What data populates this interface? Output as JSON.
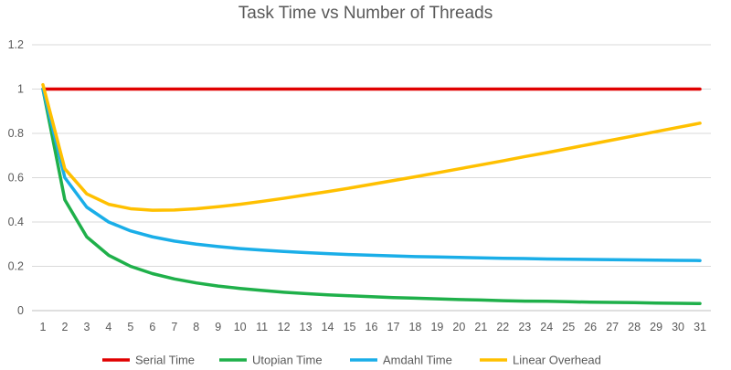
{
  "chart_data": {
    "type": "line",
    "title": "Task Time vs Number of Threads",
    "xlabel": "",
    "ylabel": "",
    "ylim": [
      0,
      1.2
    ],
    "yticks": [
      "0",
      "0.2",
      "0.4",
      "0.6",
      "0.8",
      "1",
      "1.2"
    ],
    "x": [
      1,
      2,
      3,
      4,
      5,
      6,
      7,
      8,
      9,
      10,
      11,
      12,
      13,
      14,
      15,
      16,
      17,
      18,
      19,
      20,
      21,
      22,
      23,
      24,
      25,
      26,
      27,
      28,
      29,
      30,
      31
    ],
    "grid": true,
    "legend_position": "bottom",
    "series": [
      {
        "name": "Serial Time",
        "color": "#e00000",
        "values": [
          1,
          1,
          1,
          1,
          1,
          1,
          1,
          1,
          1,
          1,
          1,
          1,
          1,
          1,
          1,
          1,
          1,
          1,
          1,
          1,
          1,
          1,
          1,
          1,
          1,
          1,
          1,
          1,
          1,
          1,
          1
        ]
      },
      {
        "name": "Utopian Time",
        "color": "#1fb04a",
        "values": [
          1,
          0.5,
          0.333,
          0.25,
          0.2,
          0.167,
          0.143,
          0.125,
          0.111,
          0.1,
          0.091,
          0.083,
          0.077,
          0.071,
          0.067,
          0.063,
          0.059,
          0.056,
          0.053,
          0.05,
          0.048,
          0.045,
          0.043,
          0.042,
          0.04,
          0.038,
          0.037,
          0.036,
          0.034,
          0.033,
          0.032
        ]
      },
      {
        "name": "Amdahl Time",
        "color": "#1aaee8",
        "values": [
          1,
          0.6,
          0.467,
          0.4,
          0.36,
          0.333,
          0.314,
          0.3,
          0.289,
          0.28,
          0.273,
          0.267,
          0.262,
          0.257,
          0.253,
          0.25,
          0.247,
          0.244,
          0.242,
          0.24,
          0.238,
          0.236,
          0.235,
          0.233,
          0.232,
          0.231,
          0.23,
          0.229,
          0.228,
          0.227,
          0.226
        ]
      },
      {
        "name": "Linear Overhead",
        "color": "#ffc000",
        "values": [
          1.02,
          0.64,
          0.527,
          0.48,
          0.46,
          0.453,
          0.454,
          0.46,
          0.469,
          0.48,
          0.493,
          0.507,
          0.522,
          0.537,
          0.553,
          0.57,
          0.587,
          0.604,
          0.622,
          0.64,
          0.658,
          0.676,
          0.695,
          0.713,
          0.732,
          0.751,
          0.77,
          0.789,
          0.808,
          0.827,
          0.846
        ]
      }
    ]
  }
}
